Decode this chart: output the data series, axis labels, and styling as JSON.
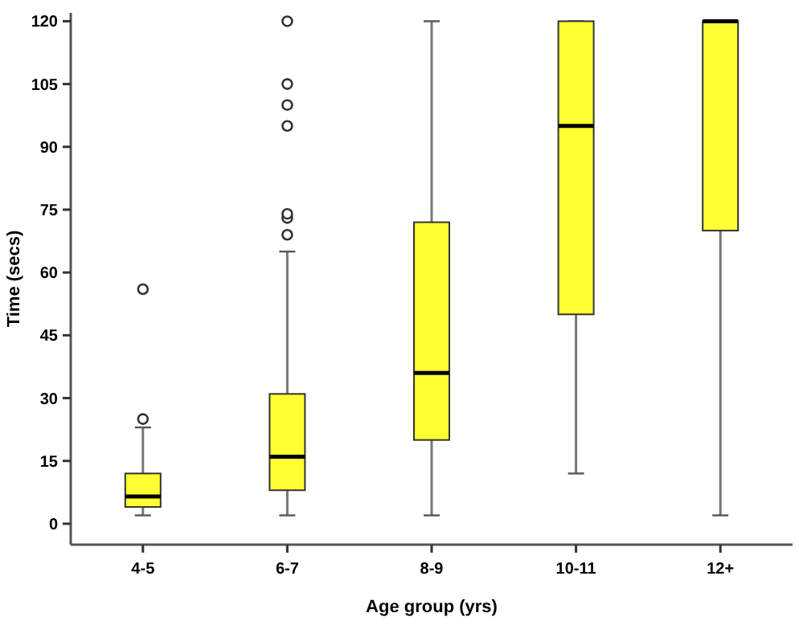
{
  "chart_data": {
    "type": "box",
    "xlabel": "Age group (yrs)",
    "ylabel": "Time (secs)",
    "categories": [
      "4-5",
      "6-7",
      "8-9",
      "10-11",
      "12+"
    ],
    "ylim": [
      -5,
      122
    ],
    "yticks": [
      0,
      15,
      30,
      45,
      60,
      75,
      90,
      105,
      120
    ],
    "color": "#ffff33",
    "grid": false,
    "boxes": [
      {
        "low": 2,
        "q1": 4,
        "median": 6.5,
        "q3": 12,
        "high": 23,
        "outliers": [
          25,
          56
        ]
      },
      {
        "low": 2,
        "q1": 8,
        "median": 16,
        "q3": 31,
        "high": 65,
        "outliers": [
          69,
          73,
          74,
          95,
          100,
          105,
          120
        ]
      },
      {
        "low": 2,
        "q1": 20,
        "median": 36,
        "q3": 72,
        "high": 120
      },
      {
        "low": 12,
        "q1": 50,
        "median": 95,
        "q3": 120,
        "high": 120
      },
      {
        "low": 2,
        "q1": 70,
        "median": 120,
        "q3": 120,
        "high": 120
      }
    ]
  }
}
